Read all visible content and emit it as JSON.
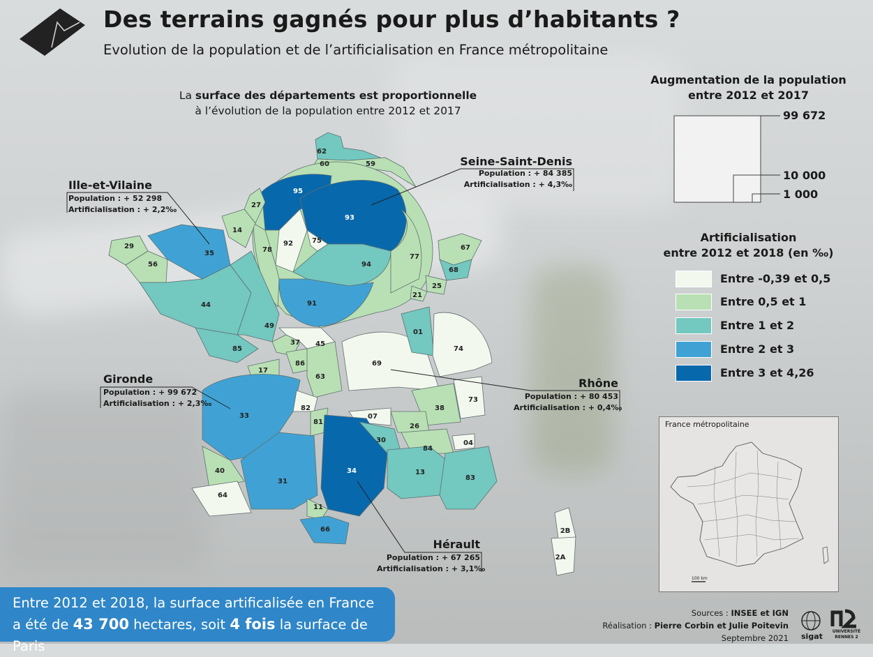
{
  "header": {
    "title": "Des terrains gagnés pour plus d’habitants ?",
    "subtitle": "Evolution de la population et de l’artificialisation en France métropolitaine"
  },
  "caption": {
    "prefix": "La ",
    "bold": "surface des départements est proportionnelle",
    "line2": "à l’évolution de la population entre 2012 et 2017"
  },
  "callouts": {
    "seine_saint_denis": {
      "name": "Seine-Saint-Denis",
      "population": "Population : + 84 385",
      "artif": "Artificialisation : + 4,3‰"
    },
    "ille_et_vilaine": {
      "name": "Ille-et-Vilaine",
      "population": "Population : + 52 298",
      "artif": "Artificialisation : + 2,2‰"
    },
    "gironde": {
      "name": "Gironde",
      "population": "Population : + 99 672",
      "artif": "Artificialisation : + 2,3‰"
    },
    "rhone": {
      "name": "Rhône",
      "population": "Population : + 80 453",
      "artif": "Artificialisation : + 0,4‰"
    },
    "herault": {
      "name": "Hérault",
      "population": "Population : + 67 265",
      "artif": "Artificialisation : + 3,1‰"
    }
  },
  "legend_population": {
    "title_line1": "Augmentation de la population",
    "title_line2": "entre 2012 et 2017",
    "labels": [
      "99 672",
      "10 000",
      "1 000"
    ],
    "values": [
      99672,
      10000,
      1000
    ]
  },
  "legend_artif": {
    "title_line1": "Artificialisation",
    "title_line2": "entre 2012 et 2018 (en ‰)",
    "classes": [
      {
        "label": "Entre -0,39 et 0,5",
        "color": "#f3f8ef"
      },
      {
        "label": "Entre 0,5 et 1",
        "color": "#b9e0b4"
      },
      {
        "label": "Entre 1 et 2",
        "color": "#73c8c0"
      },
      {
        "label": "Entre 2 et 3",
        "color": "#40a2d4"
      },
      {
        "label": "Entre 3 et 4,26",
        "color": "#0868ac"
      }
    ]
  },
  "inset": {
    "title": "France métropolitaine",
    "scale": "100 km"
  },
  "banner": {
    "line1": "Entre 2012 et 2018, la surface artificalisée en France",
    "l2_a": "a été de ",
    "l2_b": "43 700",
    "l2_c": " hectares, soit ",
    "l2_d": "4 fois",
    "l2_e": " la surface de Paris"
  },
  "credits": {
    "sources_prefix": "Sources : ",
    "sources": "INSEE et IGN",
    "real_prefix": "Réalisation : ",
    "real": "Pierre Corbin et Julie Poitevin",
    "date": "Septembre 2021"
  },
  "logos": {
    "sigat": "sigat",
    "univ1": "UNIVERSITÉ",
    "univ2": "RENNES 2"
  },
  "departments": [
    "62",
    "60",
    "59",
    "27",
    "14",
    "95",
    "93",
    "92",
    "75",
    "78",
    "94",
    "77",
    "67",
    "68",
    "29",
    "56",
    "35",
    "44",
    "49",
    "91",
    "85",
    "37",
    "45",
    "21",
    "25",
    "01",
    "74",
    "17",
    "86",
    "63",
    "69",
    "73",
    "33",
    "82",
    "07",
    "38",
    "26",
    "81",
    "30",
    "84",
    "04",
    "13",
    "40",
    "31",
    "34",
    "83",
    "64",
    "11",
    "66",
    "2B",
    "2A"
  ]
}
